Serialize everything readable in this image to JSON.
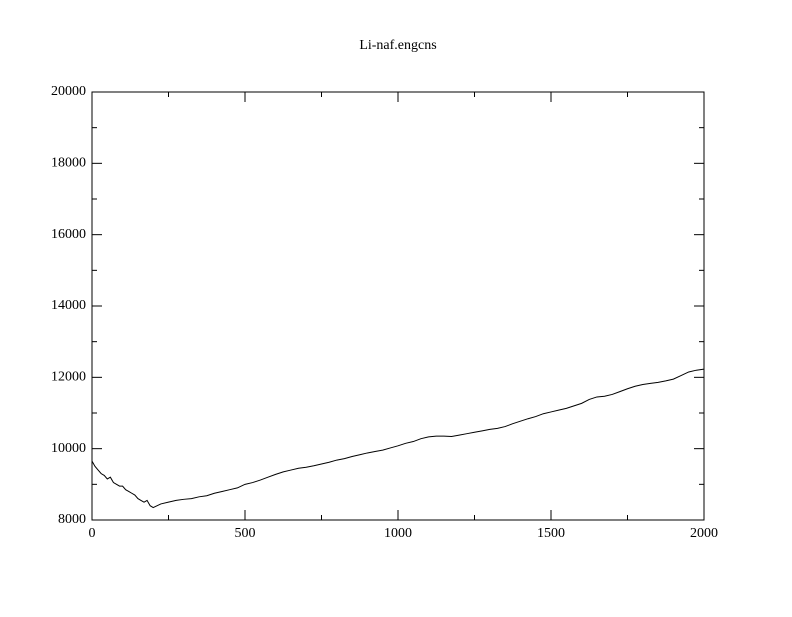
{
  "chart_data": {
    "type": "line",
    "title": "Li-naf.engcns",
    "x": [
      0,
      10,
      20,
      30,
      40,
      50,
      60,
      70,
      80,
      90,
      100,
      110,
      120,
      130,
      140,
      150,
      160,
      170,
      180,
      190,
      200,
      225,
      250,
      275,
      300,
      325,
      350,
      375,
      400,
      425,
      450,
      475,
      500,
      525,
      550,
      575,
      600,
      625,
      650,
      675,
      700,
      725,
      750,
      775,
      800,
      825,
      850,
      875,
      900,
      925,
      950,
      975,
      1000,
      1025,
      1050,
      1075,
      1100,
      1125,
      1150,
      1175,
      1200,
      1225,
      1250,
      1275,
      1300,
      1325,
      1350,
      1375,
      1400,
      1425,
      1450,
      1475,
      1500,
      1525,
      1550,
      1575,
      1600,
      1625,
      1650,
      1675,
      1700,
      1725,
      1750,
      1775,
      1800,
      1825,
      1850,
      1875,
      1900,
      1925,
      1950,
      1975,
      2000
    ],
    "series": [
      {
        "color": "#000000",
        "values": [
          9650,
          9500,
          9400,
          9300,
          9250,
          9150,
          9200,
          9050,
          9000,
          8950,
          8950,
          8850,
          8800,
          8750,
          8700,
          8600,
          8550,
          8500,
          8550,
          8400,
          8350,
          8450,
          8500,
          8550,
          8580,
          8600,
          8650,
          8680,
          8750,
          8800,
          8850,
          8900,
          9000,
          9050,
          9120,
          9200,
          9280,
          9350,
          9400,
          9450,
          9480,
          9520,
          9570,
          9620,
          9680,
          9720,
          9780,
          9830,
          9880,
          9920,
          9960,
          10020,
          10080,
          10150,
          10200,
          10280,
          10330,
          10350,
          10350,
          10340,
          10380,
          10420,
          10460,
          10500,
          10540,
          10570,
          10620,
          10700,
          10770,
          10840,
          10900,
          10980,
          11030,
          11080,
          11130,
          11200,
          11270,
          11380,
          11450,
          11470,
          11520,
          11600,
          11680,
          11750,
          11800,
          11830,
          11860,
          11900,
          11950,
          12050,
          12150,
          12200,
          12230
        ]
      }
    ],
    "xlim": [
      0,
      2000
    ],
    "xticks": [
      0,
      500,
      1000,
      1500,
      2000
    ],
    "xminorticks": [
      250,
      750,
      1250,
      1750
    ],
    "ylim": [
      8000,
      20000
    ],
    "yticks": [
      8000,
      10000,
      12000,
      14000,
      16000,
      18000,
      20000
    ],
    "yminorticks": [
      9000,
      11000,
      13000,
      15000,
      17000,
      19000
    ]
  }
}
